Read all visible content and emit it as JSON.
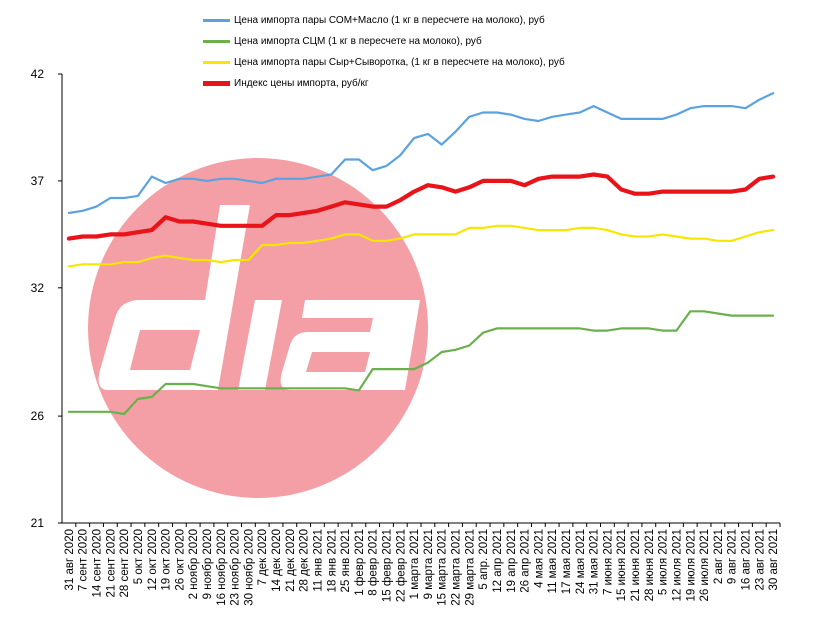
{
  "chart_data": {
    "type": "line",
    "ylim": [
      21,
      42
    ],
    "yticks": [
      21,
      26,
      32,
      37,
      42
    ],
    "x": [
      "31 авг 2020",
      "7 сент 2020",
      "14 сент 2020",
      "21 сент 2020",
      "28 сент 2020",
      "5 окт 2020",
      "12 окт 2020",
      "19 окт 2020",
      "26 окт 2020",
      "2 ноябр 2020",
      "9 ноябр 2020",
      "16 ноябр 2020",
      "23 ноябр 2020",
      "30 ноябр 2020",
      "7 дек 2020",
      "14 дек 2020",
      "21 дек 2020",
      "28 дек 2020",
      "11 янв 2021",
      "18 янв 2021",
      "25 янв 2021",
      "1 февр 2021",
      "8 февр 2021",
      "15 февр 2021",
      "22 февр 2021",
      "1 марта 2021",
      "9 марта 2021",
      "15 марта 2021",
      "22 марта 2021",
      "29 марта 2021",
      "5 апр. 2021",
      "12 апр 2021",
      "19 апр 2021",
      "26 апр 2021",
      "4 мая 2021",
      "11 мая 2021",
      "17 мая 2021",
      "24 мая 2021",
      "31 мая 2021",
      "7 июня 2021",
      "15 июня 2021",
      "21 июня 2021",
      "28 июня 2021",
      "5 июля 2021",
      "12 июля 2021",
      "19 июля 2021",
      "26 июля 2021",
      "2 авг 2021",
      "9 авг 2021",
      "16 авг 2021",
      "23 авг 2021",
      "30 авг 2021"
    ],
    "series": [
      {
        "name": "Цена  импорта пары СОМ+Масло  (1 кг в пересчете на молоко), руб",
        "color": "#5ba3e0",
        "width": 2.2,
        "values": [
          35.5,
          35.6,
          35.8,
          36.2,
          36.2,
          36.3,
          37.2,
          36.9,
          37.1,
          37.1,
          37.0,
          37.1,
          37.1,
          37.0,
          36.9,
          37.1,
          37.1,
          37.1,
          37.2,
          37.3,
          38.0,
          38.0,
          37.5,
          37.7,
          38.2,
          39.0,
          39.2,
          38.7,
          39.3,
          40.0,
          40.2,
          40.2,
          40.1,
          39.9,
          39.8,
          40.0,
          40.1,
          40.2,
          40.5,
          40.2,
          39.9,
          39.9,
          39.9,
          39.9,
          40.1,
          40.4,
          40.5,
          40.5,
          40.5,
          40.4,
          40.8,
          41.1
        ]
      },
      {
        "name": "Цена  импорта  СЦМ  (1 кг в пересчете на молоко), руб",
        "color": "#6ab04c",
        "width": 2.2,
        "values": [
          26.2,
          26.2,
          26.2,
          26.2,
          26.1,
          26.8,
          26.9,
          27.5,
          27.5,
          27.5,
          27.4,
          27.3,
          27.3,
          27.3,
          27.3,
          27.3,
          27.3,
          27.3,
          27.3,
          27.3,
          27.3,
          27.2,
          28.2,
          28.2,
          28.2,
          28.2,
          28.5,
          29.0,
          29.1,
          29.3,
          29.9,
          30.1,
          30.1,
          30.1,
          30.1,
          30.1,
          30.1,
          30.1,
          30.0,
          30.0,
          30.1,
          30.1,
          30.1,
          30.0,
          30.0,
          30.9,
          30.9,
          30.8,
          30.7,
          30.7,
          30.7,
          30.7
        ]
      },
      {
        "name": "Цена  импорта пары Сыр+Сыворотка,  (1 кг в пересчете на молоко), руб",
        "color": "#f7e600",
        "width": 2.2,
        "values": [
          33.0,
          33.1,
          33.1,
          33.1,
          33.2,
          33.2,
          33.4,
          33.5,
          33.4,
          33.3,
          33.3,
          33.2,
          33.3,
          33.3,
          34.0,
          34.0,
          34.1,
          34.1,
          34.2,
          34.3,
          34.5,
          34.5,
          34.2,
          34.2,
          34.3,
          34.5,
          34.5,
          34.5,
          34.5,
          34.8,
          34.8,
          34.9,
          34.9,
          34.8,
          34.7,
          34.7,
          34.7,
          34.8,
          34.8,
          34.7,
          34.5,
          34.4,
          34.4,
          34.5,
          34.4,
          34.3,
          34.3,
          34.2,
          34.2,
          34.4,
          34.6,
          34.7
        ]
      },
      {
        "name": "Индекс цены импорта, руб/кг",
        "color": "#e8141a",
        "width": 4.2,
        "values": [
          34.3,
          34.4,
          34.4,
          34.5,
          34.5,
          34.6,
          34.7,
          35.3,
          35.1,
          35.1,
          35.0,
          34.9,
          34.9,
          34.9,
          34.9,
          35.4,
          35.4,
          35.5,
          35.6,
          35.8,
          36.0,
          35.9,
          35.8,
          35.8,
          36.1,
          36.5,
          36.8,
          36.7,
          36.5,
          36.7,
          37.0,
          37.0,
          37.0,
          36.8,
          37.1,
          37.2,
          37.2,
          37.2,
          37.3,
          37.2,
          36.6,
          36.4,
          36.4,
          36.5,
          36.5,
          36.5,
          36.5,
          36.5,
          36.5,
          36.6,
          37.1,
          37.2
        ]
      }
    ]
  }
}
